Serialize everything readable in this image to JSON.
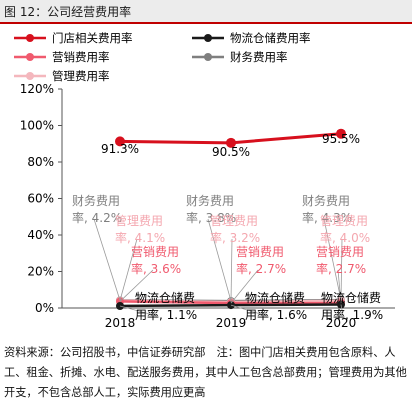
{
  "figure": {
    "title": "图 12：公司经营费用率",
    "source_note": "资料来源：公司招股书，中信证券研究部　注：图中门店相关费用包含原料、人工、租金、折摊、水电、配送服务费用，其中人工包含总部费用；管理费用为其他开支，不包含总部人工，实际费用应更高"
  },
  "chart_data": {
    "type": "line",
    "categories": [
      "2018",
      "2019",
      "2020"
    ],
    "ylim": [
      0,
      120
    ],
    "yticks": [
      0,
      20,
      40,
      60,
      80,
      100,
      120
    ],
    "ytick_labels": [
      "0%",
      "20%",
      "40%",
      "60%",
      "80%",
      "100%",
      "120%"
    ],
    "legend_position": "top",
    "grid": false,
    "series": [
      {
        "name": "门店相关费用率",
        "color": "#d7101d",
        "values": [
          91.3,
          90.5,
          95.5
        ],
        "labels": [
          "91.3%",
          "90.5%",
          "95.5%"
        ]
      },
      {
        "name": "物流仓储费用率",
        "color": "#1a1a1a",
        "values": [
          1.1,
          1.6,
          1.9
        ],
        "labels": [
          "物流仓储费\n用率, 1.1%",
          "物流仓储费\n用率, 1.6%",
          "物流仓储费\n用率, 1.9%"
        ]
      },
      {
        "name": "营销费用率",
        "color": "#f05a6e",
        "values": [
          3.6,
          2.7,
          2.7
        ],
        "labels": [
          "营销费用\n率, 3.6%",
          "营销费用\n率, 2.7%",
          "营销费用\n率, 2.7%"
        ]
      },
      {
        "name": "财务费用率",
        "color": "#7f7f7f",
        "values": [
          4.2,
          3.8,
          4.3
        ],
        "labels": [
          "财务费用\n率, 4.2%",
          "财务费用\n率, 3.8%",
          "财务费用\n率, 4.3%"
        ]
      },
      {
        "name": "管理费用率",
        "color": "#f4b7bd",
        "values": [
          4.1,
          3.2,
          4.0
        ],
        "labels": [
          "管理费用\n率, 4.1%",
          "管理费用\n率, 3.2%",
          "管理费用\n率, 4.0%"
        ]
      }
    ]
  }
}
